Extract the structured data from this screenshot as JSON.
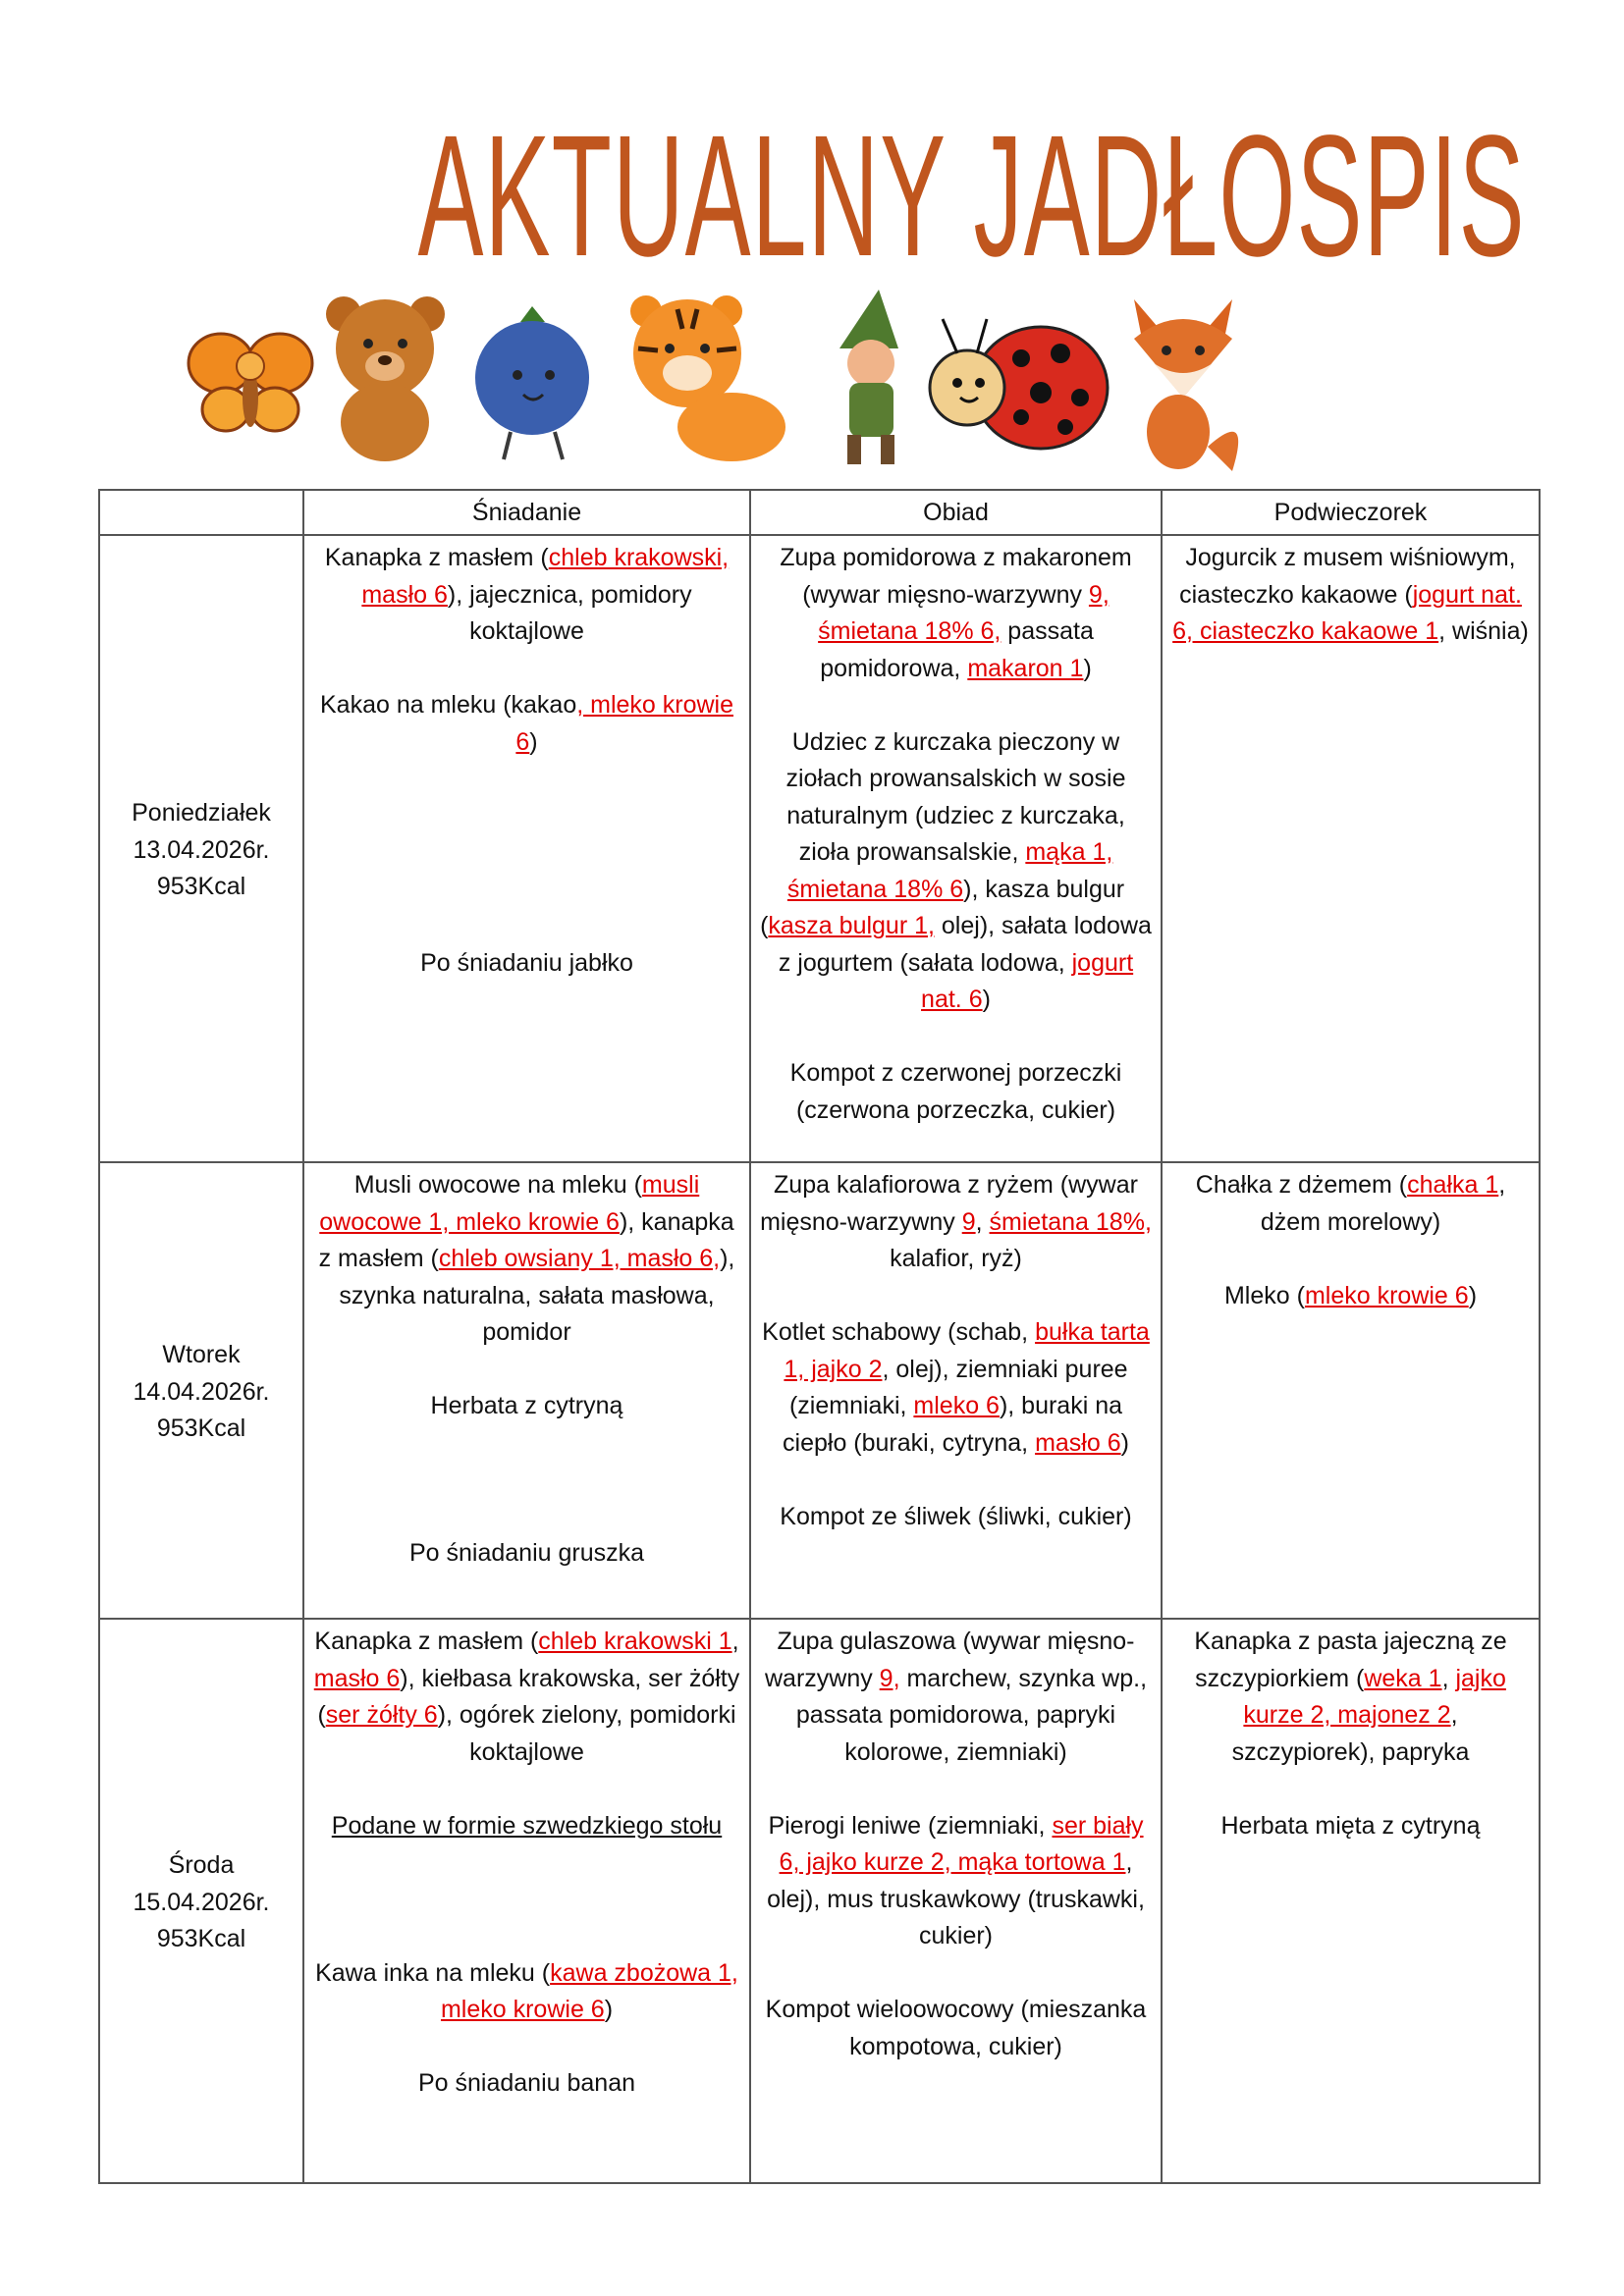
{
  "header": {
    "title": "AKTUALNY JADŁOSPIS"
  },
  "animals": [
    "butterfly",
    "bear",
    "blueberry",
    "tiger",
    "gnome",
    "ladybug",
    "fox"
  ],
  "colors": {
    "title": "#c0561e",
    "allergen": "#e00000",
    "border": "#555555"
  },
  "table": {
    "columns": [
      "",
      "Śniadanie",
      "Obiad",
      "Podwieczorek"
    ],
    "rows": [
      {
        "day": [
          "Poniedziałek",
          "13.04.2026r.",
          "953Kcal"
        ],
        "cells": [
          [
            [
              {
                "t": "Kanapka z masłem ("
              },
              {
                "t": "chleb krakowski, masło 6",
                "a": true
              },
              {
                "t": "), jajecznica, pomidory koktajlowe"
              }
            ],
            [],
            [
              {
                "t": "Kakao na mleku (kakao"
              },
              {
                "t": ", mleko krowie 6",
                "a": true
              },
              {
                "t": ")"
              }
            ],
            [],
            [],
            [],
            [],
            [],
            [
              {
                "t": "Po śniadaniu jabłko"
              }
            ]
          ],
          [
            [
              {
                "t": "Zupa pomidorowa z makaronem (wywar mięsno-warzywny "
              },
              {
                "t": "9, śmietana 18% 6,",
                "a": true
              },
              {
                "t": " passata pomidorowa, "
              },
              {
                "t": "makaron 1",
                "a": true
              },
              {
                "t": ")"
              }
            ],
            [],
            [
              {
                "t": "Udziec z kurczaka pieczony w ziołach prowansalskich w sosie naturalnym (udziec z kurczaka, zioła prowansalskie, "
              },
              {
                "t": "mąka 1, śmietana 18% 6",
                "a": true
              },
              {
                "t": "), kasza bulgur ("
              },
              {
                "t": "kasza bulgur 1,",
                "a": true
              },
              {
                "t": " olej), sałata lodowa z jogurtem (sałata lodowa, "
              },
              {
                "t": "jogurt nat. 6",
                "a": true
              },
              {
                "t": ")"
              }
            ],
            [],
            [
              {
                "t": "Kompot z czerwonej porzeczki (czerwona porzeczka, cukier)"
              }
            ]
          ],
          [
            [
              {
                "t": "Jogurcik z musem wiśniowym, ciasteczko kakaowe ("
              },
              {
                "t": "jogurt nat. 6, ciasteczko kakaowe 1",
                "a": true
              },
              {
                "t": ", wiśnia)"
              }
            ]
          ]
        ]
      },
      {
        "day": [
          "Wtorek",
          "14.04.2026r.",
          "953Kcal"
        ],
        "cells": [
          [
            [
              {
                "t": "Musli owocowe na mleku ("
              },
              {
                "t": "musli owocowe 1, mleko krowie 6",
                "a": true
              },
              {
                "t": "), kanapka z masłem ("
              },
              {
                "t": "chleb owsiany 1, masło 6,",
                "a": true
              },
              {
                "t": "), szynka naturalna, sałata masłowa, pomidor"
              }
            ],
            [],
            [
              {
                "t": "Herbata z cytryną"
              }
            ],
            [],
            [],
            [],
            [
              {
                "t": "Po śniadaniu gruszka"
              }
            ]
          ],
          [
            [
              {
                "t": "Zupa kalafiorowa z ryżem (wywar mięsno-warzywny "
              },
              {
                "t": "9",
                "a": true
              },
              {
                "t": ", "
              },
              {
                "t": "śmietana 18%,",
                "a": true
              },
              {
                "t": " kalafior, ryż)"
              }
            ],
            [],
            [
              {
                "t": "Kotlet schabowy (schab, "
              },
              {
                "t": "bułka tarta 1, jajko 2",
                "a": true
              },
              {
                "t": ", olej), ziemniaki puree (ziemniaki, "
              },
              {
                "t": "mleko 6",
                "a": true
              },
              {
                "t": "), buraki na ciepło (buraki, cytryna, "
              },
              {
                "t": "masło 6",
                "a": true
              },
              {
                "t": ")"
              }
            ],
            [],
            [
              {
                "t": "Kompot ze śliwek (śliwki, cukier)"
              }
            ]
          ],
          [
            [
              {
                "t": "Chałka z dżemem ("
              },
              {
                "t": "chałka 1",
                "a": true
              },
              {
                "t": ", dżem morelowy)"
              }
            ],
            [],
            [
              {
                "t": "Mleko ("
              },
              {
                "t": "mleko krowie 6",
                "a": true
              },
              {
                "t": ")"
              }
            ]
          ]
        ]
      },
      {
        "day": [
          "Środa",
          "15.04.2026r.",
          "953Kcal"
        ],
        "cells": [
          [
            [
              {
                "t": "Kanapka z masłem ("
              },
              {
                "t": "chleb krakowski 1",
                "a": true
              },
              {
                "t": ", "
              },
              {
                "t": "masło 6",
                "a": true
              },
              {
                "t": "), kiełbasa krakowska, ser żółty ("
              },
              {
                "t": "ser żółty 6",
                "a": true
              },
              {
                "t": "), ogórek zielony, pomidorki koktajlowe"
              }
            ],
            [],
            [
              {
                "t": "Podane w formie szwedzkiego stołu",
                "u": true
              }
            ],
            [],
            [],
            [],
            [
              {
                "t": "Kawa inka na mleku ("
              },
              {
                "t": "kawa zbożowa 1, mleko krowie 6",
                "a": true
              },
              {
                "t": ")"
              }
            ],
            [],
            [
              {
                "t": "Po śniadaniu banan"
              }
            ]
          ],
          [
            [
              {
                "t": "Zupa gulaszowa (wywar mięsno-warzywny "
              },
              {
                "t": "9,",
                "a": true
              },
              {
                "t": " marchew, szynka wp., passata pomidorowa, papryki kolorowe, ziemniaki)"
              }
            ],
            [],
            [
              {
                "t": "Pierogi leniwe (ziemniaki, "
              },
              {
                "t": "ser biały 6, jajko kurze 2, mąka tortowa 1",
                "a": true
              },
              {
                "t": ", olej), mus truskawkowy (truskawki, cukier)"
              }
            ],
            [],
            [
              {
                "t": "Kompot wieloowocowy (mieszanka kompotowa, cukier)"
              }
            ]
          ],
          [
            [
              {
                "t": "Kanapka z pasta jajeczną ze szczypiorkiem ("
              },
              {
                "t": "weka 1",
                "a": true
              },
              {
                "t": ", "
              },
              {
                "t": "jajko kurze 2, majonez 2",
                "a": true
              },
              {
                "t": ", szczypiorek), papryka"
              }
            ],
            [],
            [
              {
                "t": "Herbata mięta z cytryną"
              }
            ]
          ]
        ]
      }
    ]
  }
}
